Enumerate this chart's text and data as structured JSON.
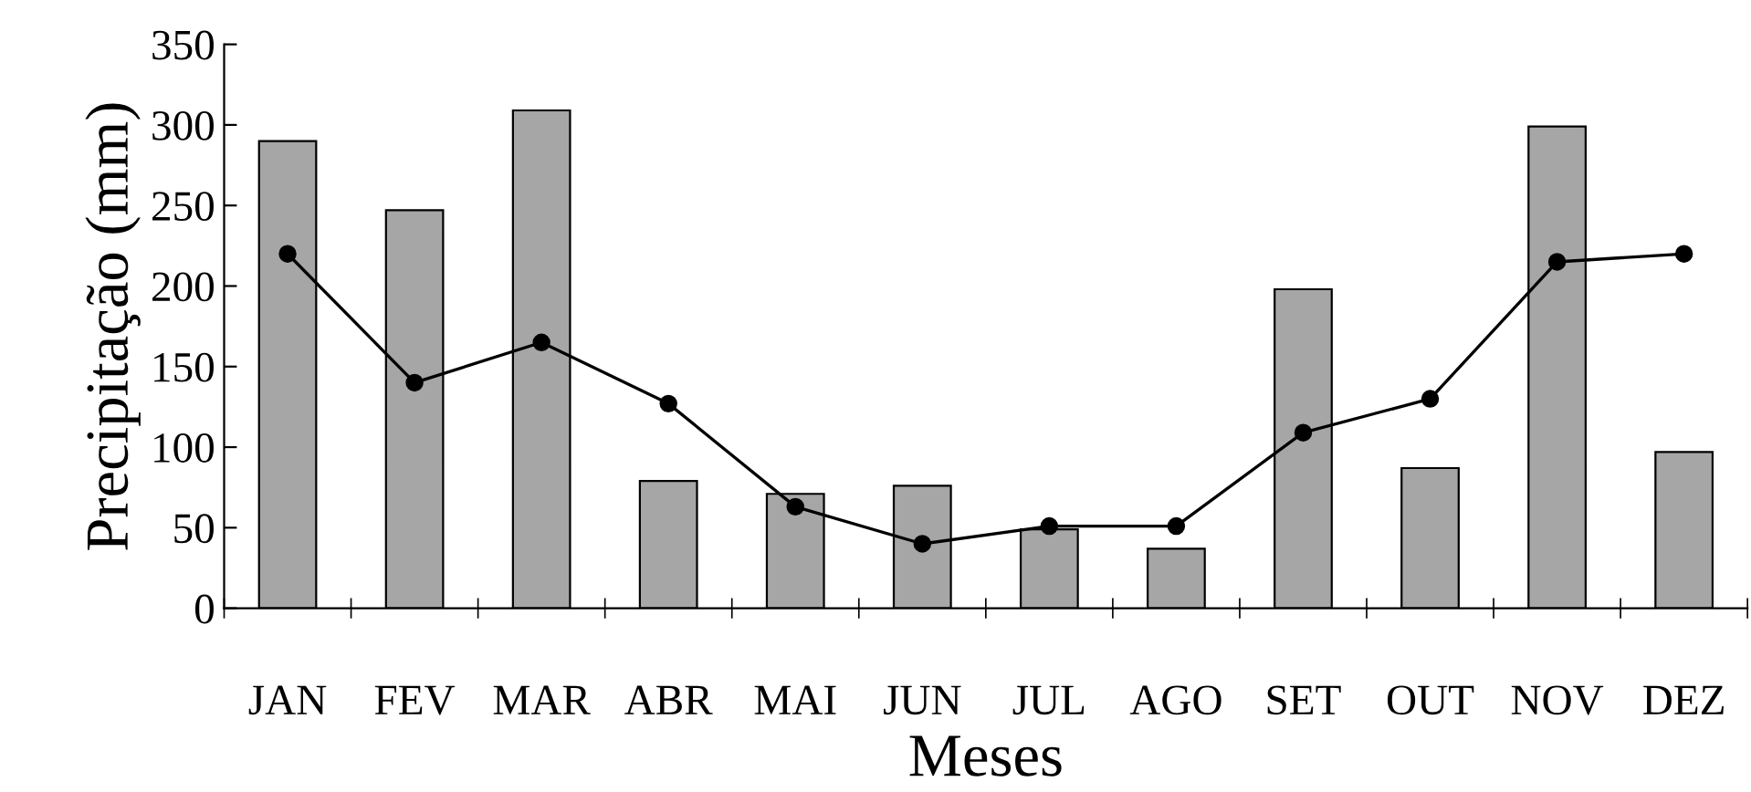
{
  "chart_data": {
    "type": "bar",
    "xlabel": "Meses",
    "ylabel": "Precipitação (mm)",
    "categories": [
      "JAN",
      "FEV",
      "MAR",
      "ABR",
      "MAI",
      "JUN",
      "JUL",
      "AGO",
      "SET",
      "OUT",
      "NOV",
      "DEZ"
    ],
    "series": [
      {
        "color": "#a6a6a6",
        "values": [
          290,
          247,
          309,
          79,
          71,
          76,
          49,
          37,
          198,
          87,
          299,
          97
        ]
      },
      {
        "type": "line",
        "color": "#000000",
        "marker": "circle",
        "line_style": "solid",
        "values": [
          220,
          140,
          165,
          127,
          63,
          40,
          51,
          51,
          109,
          130,
          215,
          220
        ]
      }
    ],
    "ylim": [
      0,
      350
    ],
    "yticks": [
      0,
      50,
      100,
      150,
      200,
      250,
      300,
      350
    ],
    "grid": false,
    "legend": false
  }
}
